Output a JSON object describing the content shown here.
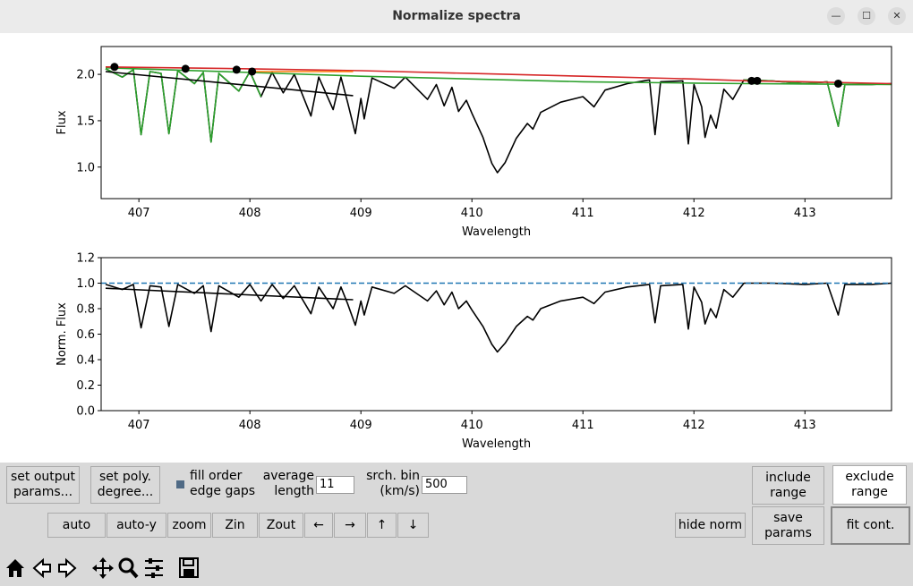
{
  "window": {
    "title": "Normalize spectra"
  },
  "chart_data": [
    {
      "type": "line",
      "xlabel": "Wavelength",
      "ylabel": "Flux",
      "xlim": [
        406.66,
        413.78
      ],
      "ylim": [
        0.66,
        2.3
      ],
      "xticks": [
        407,
        408,
        409,
        410,
        411,
        412,
        413
      ],
      "yticks": [
        {
          "value": 1.0,
          "label": "1.0"
        },
        {
          "value": 1.5,
          "label": "1.5"
        },
        {
          "value": 2.0,
          "label": "2.0"
        }
      ],
      "series": [
        {
          "color": "#000000",
          "x": [
            406.7,
            406.85,
            406.95,
            407.02,
            407.1,
            407.2,
            407.27,
            407.35,
            407.5,
            407.58,
            407.65,
            407.72,
            407.9,
            408.0,
            408.1,
            408.2,
            408.3,
            408.4,
            408.55,
            408.62,
            408.75,
            408.82,
            408.88,
            408.95,
            409.0,
            409.03,
            409.1,
            409.3,
            409.4,
            409.6,
            409.68,
            409.75,
            409.82,
            409.88,
            409.95,
            410.0,
            410.1,
            410.18,
            410.23,
            410.3,
            410.4,
            410.5,
            410.55,
            410.62,
            410.8,
            411.0,
            411.1,
            411.2,
            411.4,
            411.6,
            411.65,
            411.7,
            411.9,
            411.95,
            412.0,
            412.07,
            412.1,
            412.15,
            412.2,
            412.27,
            412.35,
            412.45,
            412.7,
            413.0,
            413.2,
            413.3,
            413.36,
            413.6,
            413.78
          ],
          "values": [
            2.06,
            1.97,
            2.05,
            1.35,
            2.03,
            2.01,
            1.36,
            2.04,
            1.9,
            2.02,
            1.27,
            2.01,
            1.82,
            2.03,
            1.76,
            2.02,
            1.8,
            2.0,
            1.55,
            1.97,
            1.62,
            1.97,
            1.7,
            1.36,
            1.74,
            1.52,
            1.96,
            1.85,
            1.97,
            1.73,
            1.89,
            1.66,
            1.86,
            1.6,
            1.72,
            1.58,
            1.32,
            1.04,
            0.94,
            1.05,
            1.31,
            1.47,
            1.41,
            1.59,
            1.7,
            1.76,
            1.65,
            1.83,
            1.9,
            1.94,
            1.35,
            1.92,
            1.93,
            1.25,
            1.89,
            1.65,
            1.32,
            1.56,
            1.42,
            1.84,
            1.73,
            1.94,
            1.93,
            1.9,
            1.92,
            1.44,
            1.89,
            1.89,
            1.9
          ]
        },
        {
          "color": "#2ca02c",
          "x": [
            406.7,
            406.85,
            406.95,
            407.02,
            407.1,
            407.2,
            407.27,
            407.35,
            407.5,
            407.58,
            407.65,
            407.72,
            407.9,
            408.0,
            408.1,
            null,
            412.45,
            412.7,
            413.0,
            413.2,
            413.3,
            413.36,
            413.6,
            413.78
          ],
          "values": [
            2.06,
            1.97,
            2.05,
            1.35,
            2.03,
            2.01,
            1.36,
            2.04,
            1.9,
            2.02,
            1.27,
            2.01,
            1.82,
            2.03,
            1.76,
            null,
            1.94,
            1.93,
            1.9,
            1.92,
            1.44,
            1.89,
            1.89,
            1.9
          ]
        },
        {
          "color": "#2ca02c",
          "x": [
            406.7,
            408,
            409,
            410,
            411,
            412,
            412.5,
            413.78
          ],
          "values": [
            2.07,
            2.02,
            1.98,
            1.95,
            1.92,
            1.905,
            1.9,
            1.89
          ]
        },
        {
          "color": "#d62728",
          "x": [
            406.7,
            408,
            409,
            410,
            411,
            412,
            412.5,
            413,
            413.78
          ],
          "values": [
            2.08,
            2.06,
            2.04,
            2.01,
            1.98,
            1.95,
            1.93,
            1.92,
            1.9
          ]
        },
        {
          "color": "#000000",
          "x": [
            406.7,
            408.93
          ],
          "values": [
            2.03,
            1.77
          ]
        },
        {
          "color": "#ff7f0e",
          "x": [
            408.0,
            408.93
          ],
          "values": [
            2.03,
            2.03
          ]
        },
        {
          "color": "#000000",
          "marker": true,
          "x": [
            406.78,
            407.42,
            407.88,
            408.02,
            412.52,
            412.57,
            413.3
          ],
          "values": [
            2.08,
            2.06,
            2.05,
            2.03,
            1.93,
            1.93,
            1.9
          ]
        }
      ]
    },
    {
      "type": "line",
      "xlabel": "Wavelength",
      "ylabel": "Norm. Flux",
      "xlim": [
        406.66,
        413.78
      ],
      "ylim": [
        0,
        1.2
      ],
      "xticks": [
        407,
        408,
        409,
        410,
        411,
        412,
        413
      ],
      "yticks": [
        {
          "value": 0,
          "label": "0.0"
        },
        {
          "value": 0.2,
          "label": "0.2"
        },
        {
          "value": 0.4,
          "label": "0.4"
        },
        {
          "value": 0.6,
          "label": "0.6"
        },
        {
          "value": 0.8,
          "label": "0.8"
        },
        {
          "value": 1.0,
          "label": "1.0"
        },
        {
          "value": 1.2,
          "label": "1.2"
        }
      ],
      "series": [
        {
          "color": "#000000",
          "x": [
            406.7,
            406.85,
            406.95,
            407.02,
            407.1,
            407.2,
            407.27,
            407.35,
            407.5,
            407.58,
            407.65,
            407.72,
            407.9,
            408.0,
            408.1,
            408.2,
            408.3,
            408.4,
            408.55,
            408.62,
            408.75,
            408.82,
            408.88,
            408.95,
            409.0,
            409.03,
            409.1,
            409.3,
            409.4,
            409.6,
            409.68,
            409.75,
            409.82,
            409.88,
            409.95,
            410.0,
            410.1,
            410.18,
            410.23,
            410.3,
            410.4,
            410.5,
            410.55,
            410.62,
            410.8,
            411.0,
            411.1,
            411.2,
            411.4,
            411.6,
            411.65,
            411.7,
            411.9,
            411.95,
            412.0,
            412.07,
            412.1,
            412.15,
            412.2,
            412.27,
            412.35,
            412.45,
            412.7,
            413.0,
            413.2,
            413.3,
            413.36,
            413.6,
            413.78
          ],
          "values": [
            0.99,
            0.95,
            0.99,
            0.65,
            0.98,
            0.97,
            0.66,
            0.99,
            0.92,
            0.98,
            0.62,
            0.98,
            0.89,
            0.99,
            0.86,
            0.99,
            0.88,
            0.98,
            0.76,
            0.97,
            0.8,
            0.97,
            0.84,
            0.67,
            0.86,
            0.75,
            0.97,
            0.92,
            0.98,
            0.86,
            0.94,
            0.83,
            0.93,
            0.8,
            0.86,
            0.79,
            0.66,
            0.52,
            0.46,
            0.53,
            0.66,
            0.74,
            0.71,
            0.8,
            0.86,
            0.89,
            0.84,
            0.93,
            0.97,
            0.99,
            0.69,
            0.98,
            0.99,
            0.64,
            0.97,
            0.85,
            0.68,
            0.8,
            0.73,
            0.95,
            0.89,
            1.0,
            1.0,
            0.99,
            1.0,
            0.75,
            0.99,
            0.99,
            1.0
          ]
        },
        {
          "color": "#1f77b4",
          "dash": true,
          "x": [
            406.66,
            413.78
          ],
          "values": [
            1.0,
            1.0
          ]
        },
        {
          "color": "#000000",
          "x": [
            406.7,
            408.93
          ],
          "values": [
            0.96,
            0.87
          ]
        }
      ]
    }
  ],
  "controls": {
    "set_output": "set output\nparams...",
    "set_poly": "set poly.\ndegree...",
    "fill_gaps": "fill order\nedge gaps",
    "avg_label": "average\nlength",
    "avg_value": "11",
    "bin_label": "srch. bin\n(km/s)",
    "bin_value": "500",
    "include": "include\nrange",
    "exclude": "exclude\nrange",
    "nav": [
      "auto",
      "auto-y",
      "zoom",
      "Zin",
      "Zout",
      "←",
      "→",
      "↑",
      "↓"
    ],
    "hide_norm": "hide norm",
    "save_params": "save\nparams",
    "fit_cont": "fit cont."
  }
}
